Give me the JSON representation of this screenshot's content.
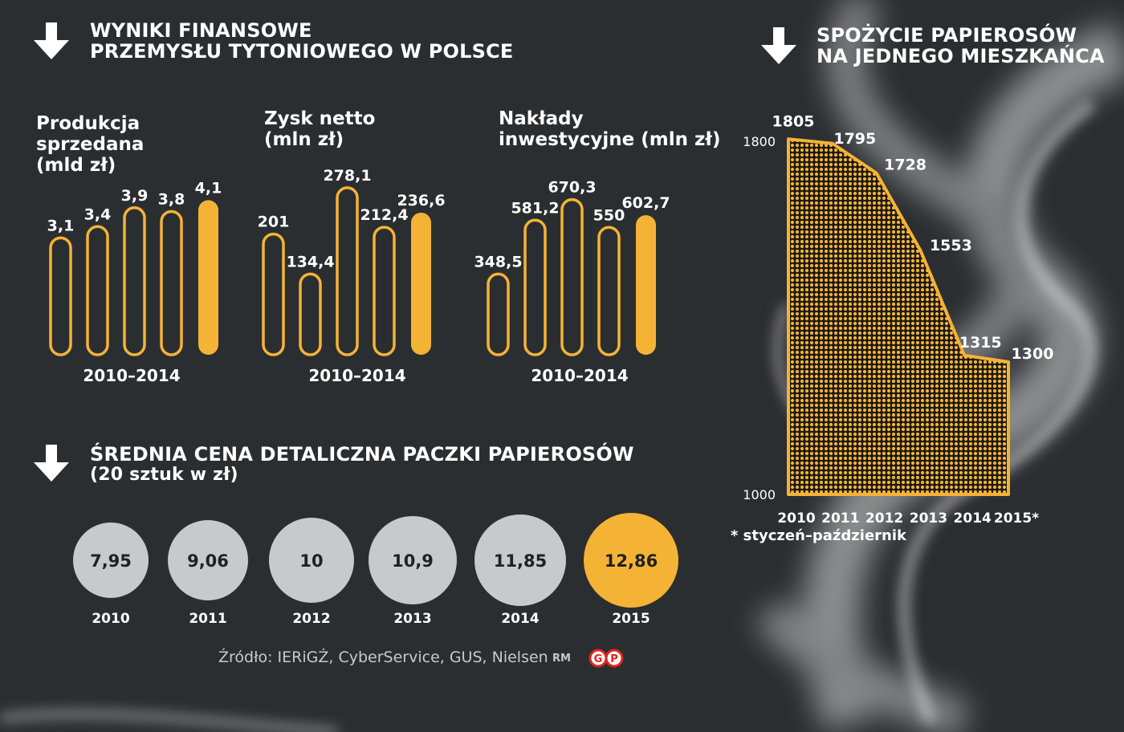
{
  "finance": {
    "title_line1": "WYNIKI FINANSOWE",
    "title_line2": "PRZEMYSŁU TYTONIOWEGO W POLSCE"
  },
  "consumption": {
    "title_line1": "SPOŻYCIE PAPIEROSÓW",
    "title_line2": "NA JEDNEGO MIESZKAŃCA",
    "footnote": "* styczeń–październik"
  },
  "price": {
    "title_line1": "ŚREDNIA CENA DETALICZNA PACZKI PAPIEROSÓW",
    "title_line2": "(20 sztuk w zł)"
  },
  "source": "Źródło: IERiGŻ, CyberService, GUS, Nielsen",
  "author": "RM",
  "colors": {
    "background": "#2b2e31",
    "accent": "#f5b335",
    "circle": "#c8c9cb",
    "text": "#ffffff"
  },
  "icons": [
    "arrow-down-icon",
    "publisher-logo-icon"
  ],
  "chart_data": [
    {
      "type": "bar",
      "title_lines": [
        "Produkcja",
        "sprzedana",
        "(mld zł)"
      ],
      "period_label": "2010–2014",
      "categories": [
        "2010",
        "2011",
        "2012",
        "2013",
        "2014"
      ],
      "values": [
        3.1,
        3.4,
        3.9,
        3.8,
        4.1
      ],
      "labels": [
        "3,1",
        "3,4",
        "3,9",
        "3,8",
        "4,1"
      ],
      "highlight_index": 4,
      "ylim": [
        0,
        4.3
      ]
    },
    {
      "type": "bar",
      "title_lines": [
        "Zysk netto",
        "(mln zł)"
      ],
      "period_label": "2010–2014",
      "categories": [
        "2010",
        "2011",
        "2012",
        "2013",
        "2014"
      ],
      "values": [
        201,
        134.4,
        278.1,
        212.4,
        236.6
      ],
      "labels": [
        "201",
        "134,4",
        "278,1",
        "212,4",
        "236,6"
      ],
      "highlight_index": 4,
      "ylim": [
        0,
        290
      ]
    },
    {
      "type": "bar",
      "title_lines": [
        "Nakłady",
        "inwestycyjne (mln zł)"
      ],
      "period_label": "2010–2014",
      "categories": [
        "2010",
        "2011",
        "2012",
        "2013",
        "2014"
      ],
      "values": [
        348.5,
        581.2,
        670.3,
        550,
        602.7
      ],
      "labels": [
        "348,5",
        "581,2",
        "670,3",
        "550",
        "602,7"
      ],
      "highlight_index": 4,
      "ylim": [
        0,
        700
      ]
    },
    {
      "type": "area",
      "categories": [
        "2010",
        "2011",
        "2012",
        "2013",
        "2014",
        "2015*"
      ],
      "x": [
        2010,
        2011,
        2012,
        2013,
        2014,
        2015
      ],
      "values": [
        1805,
        1795,
        1728,
        1553,
        1315,
        1300
      ],
      "ylim": [
        1000,
        1800
      ],
      "y_ticks": [
        "1000",
        "1800"
      ]
    },
    {
      "type": "bar",
      "categories": [
        "2010",
        "2011",
        "2012",
        "2013",
        "2014",
        "2015"
      ],
      "values": [
        7.95,
        9.06,
        10,
        10.9,
        11.85,
        12.86
      ],
      "labels": [
        "7,95",
        "9,06",
        "10",
        "10,9",
        "11,85",
        "12,86"
      ],
      "highlight_index": 5
    }
  ]
}
